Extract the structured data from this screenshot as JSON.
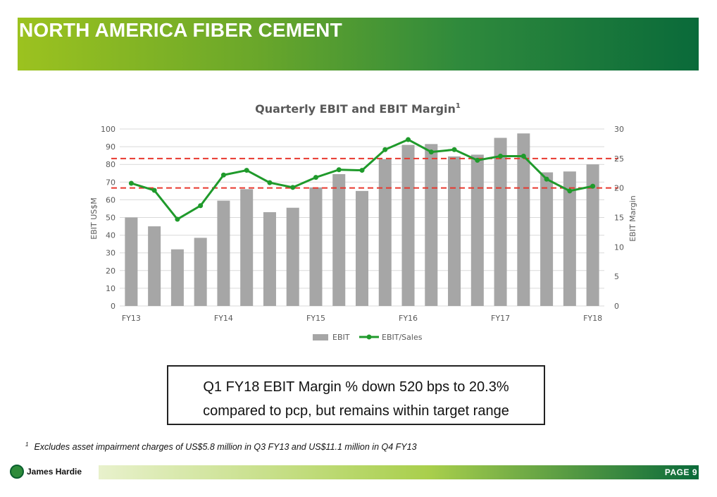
{
  "page": {
    "title": "NORTH AMERICA FIBER CEMENT",
    "page_label": "PAGE 9"
  },
  "callout": {
    "line1": "Q1 FY18 EBIT Margin % down 520 bps to 20.3%",
    "line2": "compared to pcp, but remains within target range"
  },
  "footnote": {
    "marker": "1",
    "text": "Excludes asset impairment charges of US$5.8 million in Q3 FY13 and US$11.1 million in Q4 FY13"
  },
  "logo": {
    "text": "James Hardie"
  },
  "colors": {
    "bar": "#a6a6a6",
    "line": "#1f9a2b",
    "target": "#e8382e",
    "header_start": "#9cc21f",
    "header_end": "#0a6a3a"
  },
  "chart_data": {
    "type": "bar",
    "title": "Quarterly EBIT and EBIT Margin",
    "title_superscript": "1",
    "ylabel": "EBIT US$M",
    "y2label": "EBIT Margin",
    "ylim": [
      0,
      100
    ],
    "y2lim": [
      0,
      30
    ],
    "yticks": [
      0,
      10,
      20,
      30,
      40,
      50,
      60,
      70,
      80,
      90,
      100
    ],
    "y2ticks": [
      0,
      5,
      10,
      15,
      20,
      25,
      30
    ],
    "x_tick_labels": [
      {
        "index": 0,
        "label": "FY13"
      },
      {
        "index": 4,
        "label": "FY14"
      },
      {
        "index": 8,
        "label": "FY15"
      },
      {
        "index": 12,
        "label": "FY16"
      },
      {
        "index": 16,
        "label": "FY17"
      },
      {
        "index": 20,
        "label": "FY18"
      }
    ],
    "series": [
      {
        "name": "EBIT",
        "type": "bar",
        "axis": "left",
        "values": [
          50,
          45,
          32,
          38.5,
          59.5,
          66,
          53,
          55.5,
          67,
          74.5,
          65,
          83,
          91,
          91.5,
          84.5,
          85.5,
          95,
          97.5,
          75.5,
          76,
          80
        ]
      },
      {
        "name": "EBIT/Sales",
        "type": "line",
        "axis": "right",
        "values": [
          20.8,
          19.6,
          14.7,
          17.0,
          22.2,
          23.0,
          20.9,
          20.1,
          21.8,
          23.1,
          23.0,
          26.5,
          28.2,
          26.1,
          26.5,
          24.7,
          25.4,
          25.4,
          21.5,
          19.5,
          20.3
        ]
      }
    ],
    "target_lines": [
      20,
      25
    ],
    "legend": "bottom",
    "grid": true
  }
}
